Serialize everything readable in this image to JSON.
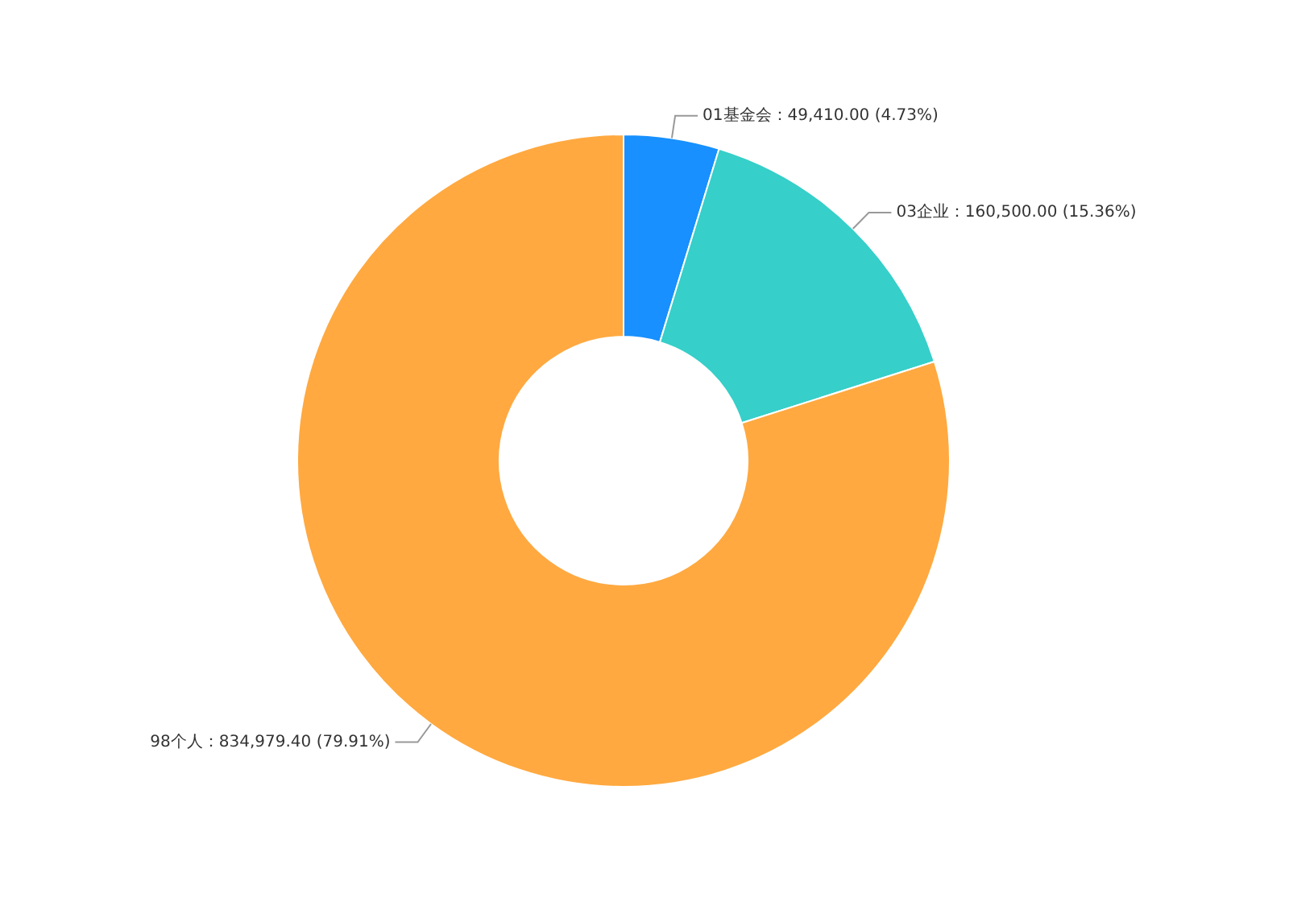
{
  "chart_data": {
    "type": "donut",
    "categories": [
      "01基金会",
      "03企业",
      "98个人"
    ],
    "values": [
      49410,
      160500,
      834979.4
    ],
    "colors": [
      "#1890ff",
      "#36cfc9",
      "#ffa940"
    ],
    "value_labels": [
      "49,410.00 (4.73%)",
      "160,500.00 (15.36%)",
      "834,979.40 (79.91%)"
    ],
    "legend": false
  }
}
